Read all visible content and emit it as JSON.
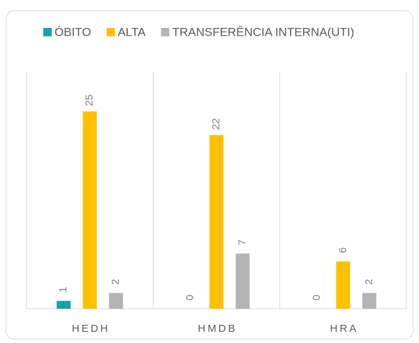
{
  "chart_data": {
    "type": "bar",
    "categories": [
      "HEDH",
      "HMDB",
      "HRA"
    ],
    "series": [
      {
        "name": "ÓBITO",
        "color": "#17a3a3",
        "values": [
          1,
          0,
          0
        ]
      },
      {
        "name": "ALTA",
        "color": "#ffc000",
        "values": [
          25,
          22,
          6
        ]
      },
      {
        "name": "TRANSFERÊNCIA INTERNA(UTI)",
        "color": "#b4b4b4",
        "values": [
          2,
          7,
          2
        ]
      }
    ],
    "ylim": [
      0,
      30
    ],
    "legend": "top"
  }
}
